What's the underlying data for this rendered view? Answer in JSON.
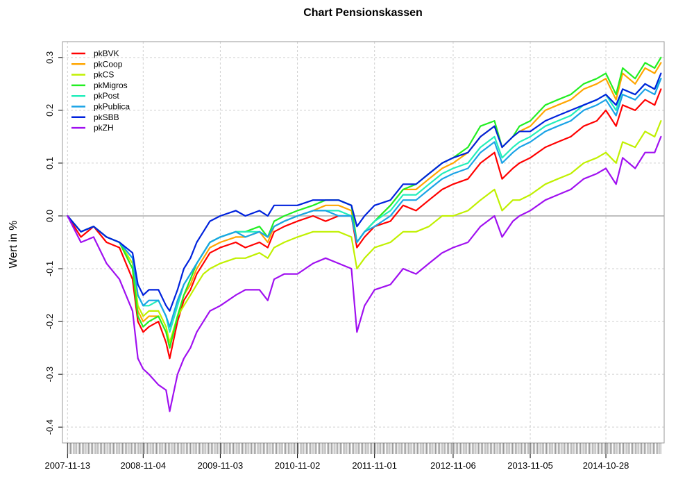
{
  "chart_data": {
    "type": "line",
    "title": "Chart Pensionskassen",
    "xlabel": "",
    "ylabel": "Wert in %",
    "ylim": [
      -0.43,
      0.33
    ],
    "yticks": [
      -0.4,
      -0.3,
      -0.2,
      -0.1,
      0.0,
      0.1,
      0.2,
      0.3
    ],
    "ytick_labels": [
      "-0.4",
      "-0.3",
      "-0.2",
      "-0.1",
      "0.0",
      "0.1",
      "0.2",
      "0.3"
    ],
    "x_range": [
      "2007-10-20",
      "2015-07-30"
    ],
    "xtick_labels": [
      "2007-11-13",
      "2008-11-04",
      "2009-11-03",
      "2010-11-02",
      "2011-11-01",
      "2012-11-06",
      "2013-11-05",
      "2014-10-28"
    ],
    "grid": true,
    "legend_position": "top-left",
    "x": [
      "2007-11-13",
      "2008-01-15",
      "2008-03-15",
      "2008-05-15",
      "2008-07-15",
      "2008-09-15",
      "2008-10-10",
      "2008-11-04",
      "2008-12-01",
      "2009-01-15",
      "2009-02-20",
      "2009-03-09",
      "2009-04-15",
      "2009-05-15",
      "2009-06-15",
      "2009-07-15",
      "2009-08-15",
      "2009-09-15",
      "2009-11-03",
      "2010-01-15",
      "2010-03-01",
      "2010-05-07",
      "2010-06-15",
      "2010-07-15",
      "2010-09-01",
      "2010-11-02",
      "2011-01-15",
      "2011-03-15",
      "2011-05-15",
      "2011-07-15",
      "2011-08-10",
      "2011-09-15",
      "2011-11-01",
      "2012-01-15",
      "2012-03-15",
      "2012-05-15",
      "2012-07-15",
      "2012-09-15",
      "2012-11-06",
      "2013-01-15",
      "2013-03-15",
      "2013-05-20",
      "2013-06-25",
      "2013-08-15",
      "2013-09-15",
      "2013-11-05",
      "2014-01-15",
      "2014-03-15",
      "2014-05-15",
      "2014-07-15",
      "2014-09-15",
      "2014-10-28",
      "2014-12-15",
      "2015-01-15",
      "2015-03-15",
      "2015-05-01",
      "2015-06-15",
      "2015-07-15"
    ],
    "series": [
      {
        "name": "pkBVK",
        "color": "#ff0000",
        "values": [
          0.0,
          -0.04,
          -0.02,
          -0.05,
          -0.06,
          -0.12,
          -0.2,
          -0.22,
          -0.21,
          -0.2,
          -0.24,
          -0.27,
          -0.2,
          -0.16,
          -0.14,
          -0.11,
          -0.09,
          -0.07,
          -0.06,
          -0.05,
          -0.06,
          -0.05,
          -0.06,
          -0.03,
          -0.02,
          -0.01,
          0.0,
          -0.01,
          0.0,
          0.0,
          -0.06,
          -0.04,
          -0.02,
          -0.01,
          0.02,
          0.01,
          0.03,
          0.05,
          0.06,
          0.07,
          0.1,
          0.12,
          0.07,
          0.09,
          0.1,
          0.11,
          0.13,
          0.14,
          0.15,
          0.17,
          0.18,
          0.2,
          0.17,
          0.21,
          0.2,
          0.22,
          0.21,
          0.24
        ]
      },
      {
        "name": "pkCoop",
        "color": "#ffa500",
        "values": [
          0.0,
          -0.03,
          -0.02,
          -0.04,
          -0.05,
          -0.1,
          -0.18,
          -0.2,
          -0.19,
          -0.19,
          -0.22,
          -0.25,
          -0.19,
          -0.15,
          -0.13,
          -0.1,
          -0.08,
          -0.06,
          -0.05,
          -0.04,
          -0.04,
          -0.03,
          -0.05,
          -0.02,
          -0.01,
          0.0,
          0.01,
          0.02,
          0.02,
          0.01,
          -0.05,
          -0.03,
          -0.01,
          0.02,
          0.05,
          0.05,
          0.07,
          0.09,
          0.1,
          0.12,
          0.15,
          0.17,
          0.13,
          0.15,
          0.16,
          0.17,
          0.2,
          0.21,
          0.22,
          0.24,
          0.25,
          0.26,
          0.22,
          0.27,
          0.25,
          0.28,
          0.27,
          0.29
        ]
      },
      {
        "name": "pkCS",
        "color": "#c0f000",
        "values": [
          0.0,
          -0.03,
          -0.02,
          -0.04,
          -0.05,
          -0.09,
          -0.17,
          -0.19,
          -0.18,
          -0.18,
          -0.21,
          -0.24,
          -0.19,
          -0.17,
          -0.15,
          -0.13,
          -0.11,
          -0.1,
          -0.09,
          -0.08,
          -0.08,
          -0.07,
          -0.08,
          -0.06,
          -0.05,
          -0.04,
          -0.03,
          -0.03,
          -0.03,
          -0.04,
          -0.1,
          -0.08,
          -0.06,
          -0.05,
          -0.03,
          -0.03,
          -0.02,
          0.0,
          0.0,
          0.01,
          0.03,
          0.05,
          0.01,
          0.03,
          0.03,
          0.04,
          0.06,
          0.07,
          0.08,
          0.1,
          0.11,
          0.12,
          0.1,
          0.14,
          0.13,
          0.16,
          0.15,
          0.18
        ]
      },
      {
        "name": "pkMigros",
        "color": "#22ee22",
        "values": [
          0.0,
          -0.03,
          -0.02,
          -0.04,
          -0.05,
          -0.1,
          -0.19,
          -0.21,
          -0.2,
          -0.19,
          -0.22,
          -0.25,
          -0.19,
          -0.15,
          -0.12,
          -0.09,
          -0.07,
          -0.05,
          -0.04,
          -0.03,
          -0.03,
          -0.02,
          -0.04,
          -0.01,
          0.0,
          0.01,
          0.02,
          0.03,
          0.03,
          0.02,
          -0.05,
          -0.03,
          -0.01,
          0.02,
          0.05,
          0.06,
          0.08,
          0.1,
          0.11,
          0.13,
          0.17,
          0.18,
          0.13,
          0.15,
          0.17,
          0.18,
          0.21,
          0.22,
          0.23,
          0.25,
          0.26,
          0.27,
          0.23,
          0.28,
          0.26,
          0.29,
          0.28,
          0.3
        ]
      },
      {
        "name": "pkPost",
        "color": "#22eebb",
        "values": [
          0.0,
          -0.03,
          -0.02,
          -0.04,
          -0.05,
          -0.08,
          -0.15,
          -0.17,
          -0.17,
          -0.16,
          -0.19,
          -0.22,
          -0.17,
          -0.13,
          -0.11,
          -0.09,
          -0.07,
          -0.05,
          -0.04,
          -0.03,
          -0.03,
          -0.03,
          -0.04,
          -0.02,
          -0.01,
          0.0,
          0.01,
          0.01,
          0.01,
          0.0,
          -0.05,
          -0.03,
          -0.01,
          0.01,
          0.04,
          0.04,
          0.06,
          0.08,
          0.09,
          0.1,
          0.13,
          0.15,
          0.11,
          0.13,
          0.14,
          0.15,
          0.17,
          0.18,
          0.19,
          0.21,
          0.22,
          0.23,
          0.2,
          0.24,
          0.23,
          0.25,
          0.24,
          0.26
        ]
      },
      {
        "name": "pkPublica",
        "color": "#1aa3e6",
        "values": [
          0.0,
          -0.03,
          -0.02,
          -0.04,
          -0.05,
          -0.08,
          -0.15,
          -0.17,
          -0.16,
          -0.16,
          -0.19,
          -0.21,
          -0.16,
          -0.13,
          -0.11,
          -0.09,
          -0.07,
          -0.05,
          -0.04,
          -0.03,
          -0.04,
          -0.03,
          -0.04,
          -0.02,
          -0.01,
          0.0,
          0.01,
          0.01,
          0.0,
          0.0,
          -0.05,
          -0.03,
          -0.02,
          0.0,
          0.03,
          0.03,
          0.05,
          0.07,
          0.08,
          0.09,
          0.12,
          0.14,
          0.1,
          0.12,
          0.13,
          0.14,
          0.16,
          0.17,
          0.18,
          0.2,
          0.21,
          0.22,
          0.19,
          0.23,
          0.22,
          0.24,
          0.23,
          0.26
        ]
      },
      {
        "name": "pkSBB",
        "color": "#0022dd",
        "values": [
          0.0,
          -0.03,
          -0.02,
          -0.04,
          -0.05,
          -0.07,
          -0.13,
          -0.15,
          -0.14,
          -0.14,
          -0.17,
          -0.18,
          -0.14,
          -0.1,
          -0.08,
          -0.05,
          -0.03,
          -0.01,
          0.0,
          0.01,
          0.0,
          0.01,
          0.0,
          0.02,
          0.02,
          0.02,
          0.03,
          0.03,
          0.03,
          0.02,
          -0.02,
          0.0,
          0.02,
          0.03,
          0.06,
          0.06,
          0.08,
          0.1,
          0.11,
          0.12,
          0.15,
          0.17,
          0.13,
          0.15,
          0.16,
          0.16,
          0.18,
          0.19,
          0.2,
          0.21,
          0.22,
          0.23,
          0.21,
          0.24,
          0.23,
          0.25,
          0.24,
          0.27
        ]
      },
      {
        "name": "pkZH",
        "color": "#a010f0",
        "values": [
          0.0,
          -0.05,
          -0.04,
          -0.09,
          -0.12,
          -0.18,
          -0.27,
          -0.29,
          -0.3,
          -0.32,
          -0.33,
          -0.37,
          -0.3,
          -0.27,
          -0.25,
          -0.22,
          -0.2,
          -0.18,
          -0.17,
          -0.15,
          -0.14,
          -0.14,
          -0.16,
          -0.12,
          -0.11,
          -0.11,
          -0.09,
          -0.08,
          -0.09,
          -0.1,
          -0.22,
          -0.17,
          -0.14,
          -0.13,
          -0.1,
          -0.11,
          -0.09,
          -0.07,
          -0.06,
          -0.05,
          -0.02,
          0.0,
          -0.04,
          -0.01,
          0.0,
          0.01,
          0.03,
          0.04,
          0.05,
          0.07,
          0.08,
          0.09,
          0.06,
          0.11,
          0.09,
          0.12,
          0.12,
          0.15
        ]
      }
    ]
  }
}
